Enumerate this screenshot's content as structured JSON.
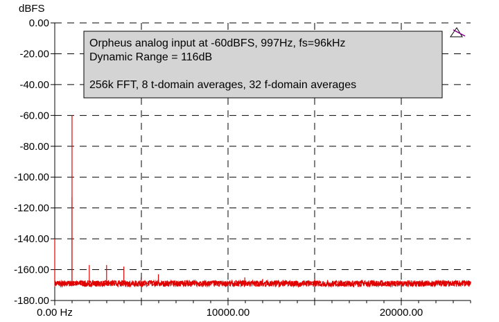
{
  "chart_data": {
    "type": "line",
    "title": "",
    "xlabel": "",
    "ylabel": "dBFS",
    "xlim": [
      0,
      24000
    ],
    "ylim": [
      -180,
      0
    ],
    "x_ticks": [
      {
        "value": 0,
        "label": "0.00 Hz"
      },
      {
        "value": 10000,
        "label": "10000.00"
      },
      {
        "value": 20000,
        "label": "20000.00"
      }
    ],
    "y_ticks": [
      {
        "value": 0,
        "label": "0.00"
      },
      {
        "value": -20,
        "label": "-20.00"
      },
      {
        "value": -40,
        "label": "-40.00"
      },
      {
        "value": -60,
        "label": "-60.00"
      },
      {
        "value": -80,
        "label": "-80.00"
      },
      {
        "value": -100,
        "label": "-100.00"
      },
      {
        "value": -120,
        "label": "-120.00"
      },
      {
        "value": -140,
        "label": "-140.00"
      },
      {
        "value": -160,
        "label": "-160.00"
      },
      {
        "value": -180,
        "label": "-180.00"
      }
    ],
    "grid": true,
    "annotation": [
      "Orpheus analog input at -60dBFS, 997Hz, fs=96kHz",
      "Dynamic Range = 116dB",
      "",
      "256k FFT, 8 t-domain averages, 32 f-domain averages"
    ],
    "series": [
      {
        "color": "#e00000",
        "noise_floor_db": -169,
        "noise_band_db": [
          -171,
          -167
        ],
        "peaks": [
          {
            "x": 0,
            "y": -140
          },
          {
            "x": 997,
            "y": -60
          },
          {
            "x": 997,
            "y": -113
          },
          {
            "x": 1994,
            "y": -157
          },
          {
            "x": 2991,
            "y": -157
          },
          {
            "x": 3988,
            "y": -158
          },
          {
            "x": 4985,
            "y": -165
          },
          {
            "x": 5982,
            "y": -163
          },
          {
            "x": 10970,
            "y": -165
          },
          {
            "x": 12000,
            "y": -166
          },
          {
            "x": 15000,
            "y": -166
          }
        ]
      }
    ]
  },
  "colors": {
    "trace": "#e00000",
    "annotation_bg": "#d4d4d4",
    "grid": "#000000",
    "cursor_marker": "#800080"
  },
  "icons": {
    "cursor_marker": "triangle-cursor-icon"
  }
}
